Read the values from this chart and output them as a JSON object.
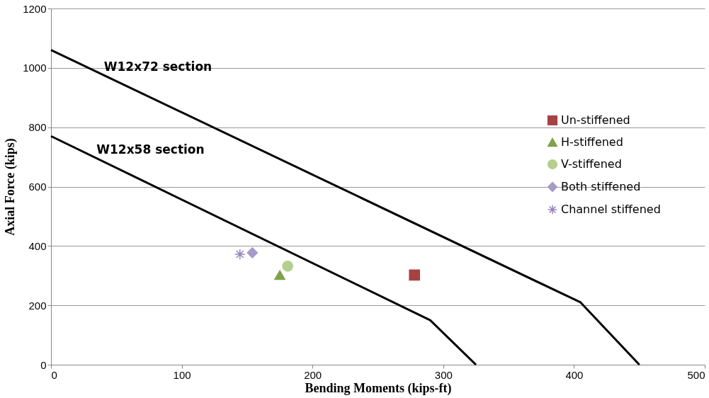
{
  "chart_data": {
    "type": "scatter",
    "xlabel": "Bending Moments (kips-ft)",
    "ylabel": "Axial Force (kips)",
    "xlim": [
      0,
      500
    ],
    "xticks": [
      0,
      100,
      200,
      300,
      400,
      500
    ],
    "ylim": [
      0,
      1200
    ],
    "yticks": [
      0,
      200,
      400,
      600,
      800,
      1000,
      1200
    ],
    "grid": "y",
    "legend": "right",
    "series": [
      {
        "name": "W12x72 section",
        "type": "line",
        "color": "#000000",
        "x": [
          0,
          405,
          450
        ],
        "values": [
          1060,
          210,
          0
        ]
      },
      {
        "name": "W12x58 section",
        "type": "line",
        "color": "#000000",
        "x": [
          0,
          290,
          325
        ],
        "values": [
          770,
          150,
          0
        ]
      },
      {
        "name": "Un-stiffened",
        "marker": "square",
        "color": "#a84242",
        "x": [
          278
        ],
        "values": [
          302
        ]
      },
      {
        "name": "H-stiffened",
        "marker": "triangle",
        "color": "#7fa24a",
        "x": [
          175
        ],
        "values": [
          302
        ]
      },
      {
        "name": "V-stiffened",
        "marker": "circle",
        "color": "#b5cf8e",
        "x": [
          181
        ],
        "values": [
          332
        ]
      },
      {
        "name": "Both stiffened",
        "marker": "diamond",
        "color": "#a59bc8",
        "x": [
          154
        ],
        "values": [
          377
        ]
      },
      {
        "name": "Channel stiffened",
        "marker": "cross",
        "color": "#9684c0",
        "x": [
          144.5
        ],
        "values": [
          372
        ]
      }
    ]
  }
}
